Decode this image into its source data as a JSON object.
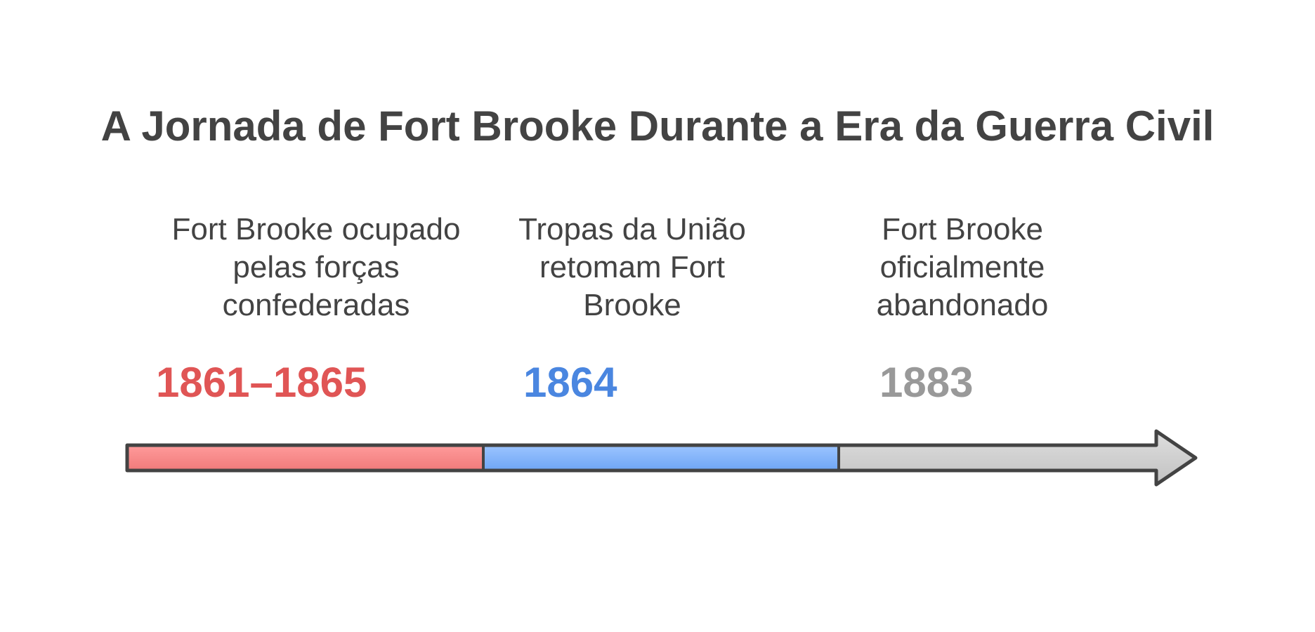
{
  "title": "A Jornada de Fort Brooke Durante a Era da Guerra Civil",
  "events": [
    {
      "year": "1861–1865",
      "description": [
        "Fort Brooke ocupado",
        "pelas forças",
        "confederadas"
      ],
      "color": "#e05555",
      "fill": "#ff8a8a"
    },
    {
      "year": "1864",
      "description": [
        "Tropas da União",
        "retomam Fort",
        "Brooke"
      ],
      "color": "#4a86e0",
      "fill": "#7db0ff"
    },
    {
      "year": "1883",
      "description": [
        "Fort Brooke",
        "oficialmente",
        "abandonado"
      ],
      "color": "#999999",
      "fill": "#c8c8c8"
    }
  ],
  "outline_color": "#434343"
}
